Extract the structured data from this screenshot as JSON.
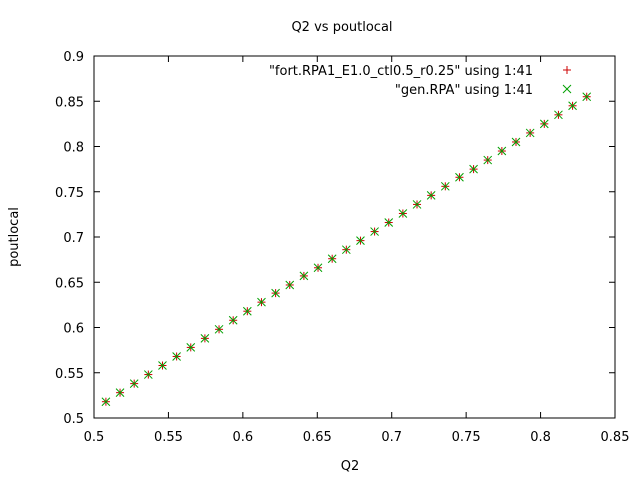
{
  "chart_data": {
    "type": "scatter",
    "title": "Q2 vs poutlocal",
    "xlabel": "Q2",
    "ylabel": "poutlocal",
    "xlim": [
      0.5,
      0.85
    ],
    "ylim": [
      0.5,
      0.9
    ],
    "xticks": [
      "0.5",
      "0.55",
      "0.6",
      "0.65",
      "0.7",
      "0.75",
      "0.8",
      "0.85"
    ],
    "yticks": [
      "0.5",
      "0.55",
      "0.6",
      "0.65",
      "0.7",
      "0.75",
      "0.8",
      "0.85",
      "0.9"
    ],
    "grid": false,
    "legend_position": "top-right",
    "series": [
      {
        "name": "\"fort.RPA1_E1.0_ctl0.5_r0.25\" using 1:41",
        "marker": "plus",
        "color": "#cc0000",
        "x": [
          0.508,
          0.5175,
          0.527,
          0.5365,
          0.546,
          0.5555,
          0.565,
          0.5745,
          0.584,
          0.5935,
          0.603,
          0.6125,
          0.622,
          0.6315,
          0.641,
          0.6505,
          0.66,
          0.6695,
          0.679,
          0.6885,
          0.698,
          0.7075,
          0.717,
          0.7265,
          0.736,
          0.7455,
          0.755,
          0.7645,
          0.774,
          0.7835,
          0.793,
          0.8025,
          0.812,
          0.8215,
          0.831
        ],
        "y": [
          0.518,
          0.528,
          0.538,
          0.548,
          0.558,
          0.568,
          0.578,
          0.588,
          0.598,
          0.608,
          0.618,
          0.628,
          0.638,
          0.647,
          0.657,
          0.666,
          0.676,
          0.686,
          0.696,
          0.706,
          0.716,
          0.726,
          0.736,
          0.746,
          0.756,
          0.766,
          0.775,
          0.785,
          0.795,
          0.805,
          0.815,
          0.825,
          0.835,
          0.845,
          0.855
        ]
      },
      {
        "name": "\"gen.RPA\" using 1:41",
        "marker": "cross",
        "color": "#00a000",
        "x": [
          0.508,
          0.5175,
          0.527,
          0.5365,
          0.546,
          0.5555,
          0.565,
          0.5745,
          0.584,
          0.5935,
          0.603,
          0.6125,
          0.622,
          0.6315,
          0.641,
          0.6505,
          0.66,
          0.6695,
          0.679,
          0.6885,
          0.698,
          0.7075,
          0.717,
          0.7265,
          0.736,
          0.7455,
          0.755,
          0.7645,
          0.774,
          0.7835,
          0.793,
          0.8025,
          0.812,
          0.8215,
          0.831
        ],
        "y": [
          0.518,
          0.528,
          0.538,
          0.548,
          0.558,
          0.568,
          0.578,
          0.588,
          0.598,
          0.608,
          0.618,
          0.628,
          0.638,
          0.647,
          0.657,
          0.666,
          0.676,
          0.686,
          0.696,
          0.706,
          0.716,
          0.726,
          0.736,
          0.746,
          0.756,
          0.766,
          0.775,
          0.785,
          0.795,
          0.805,
          0.815,
          0.825,
          0.835,
          0.845,
          0.855
        ]
      }
    ]
  }
}
